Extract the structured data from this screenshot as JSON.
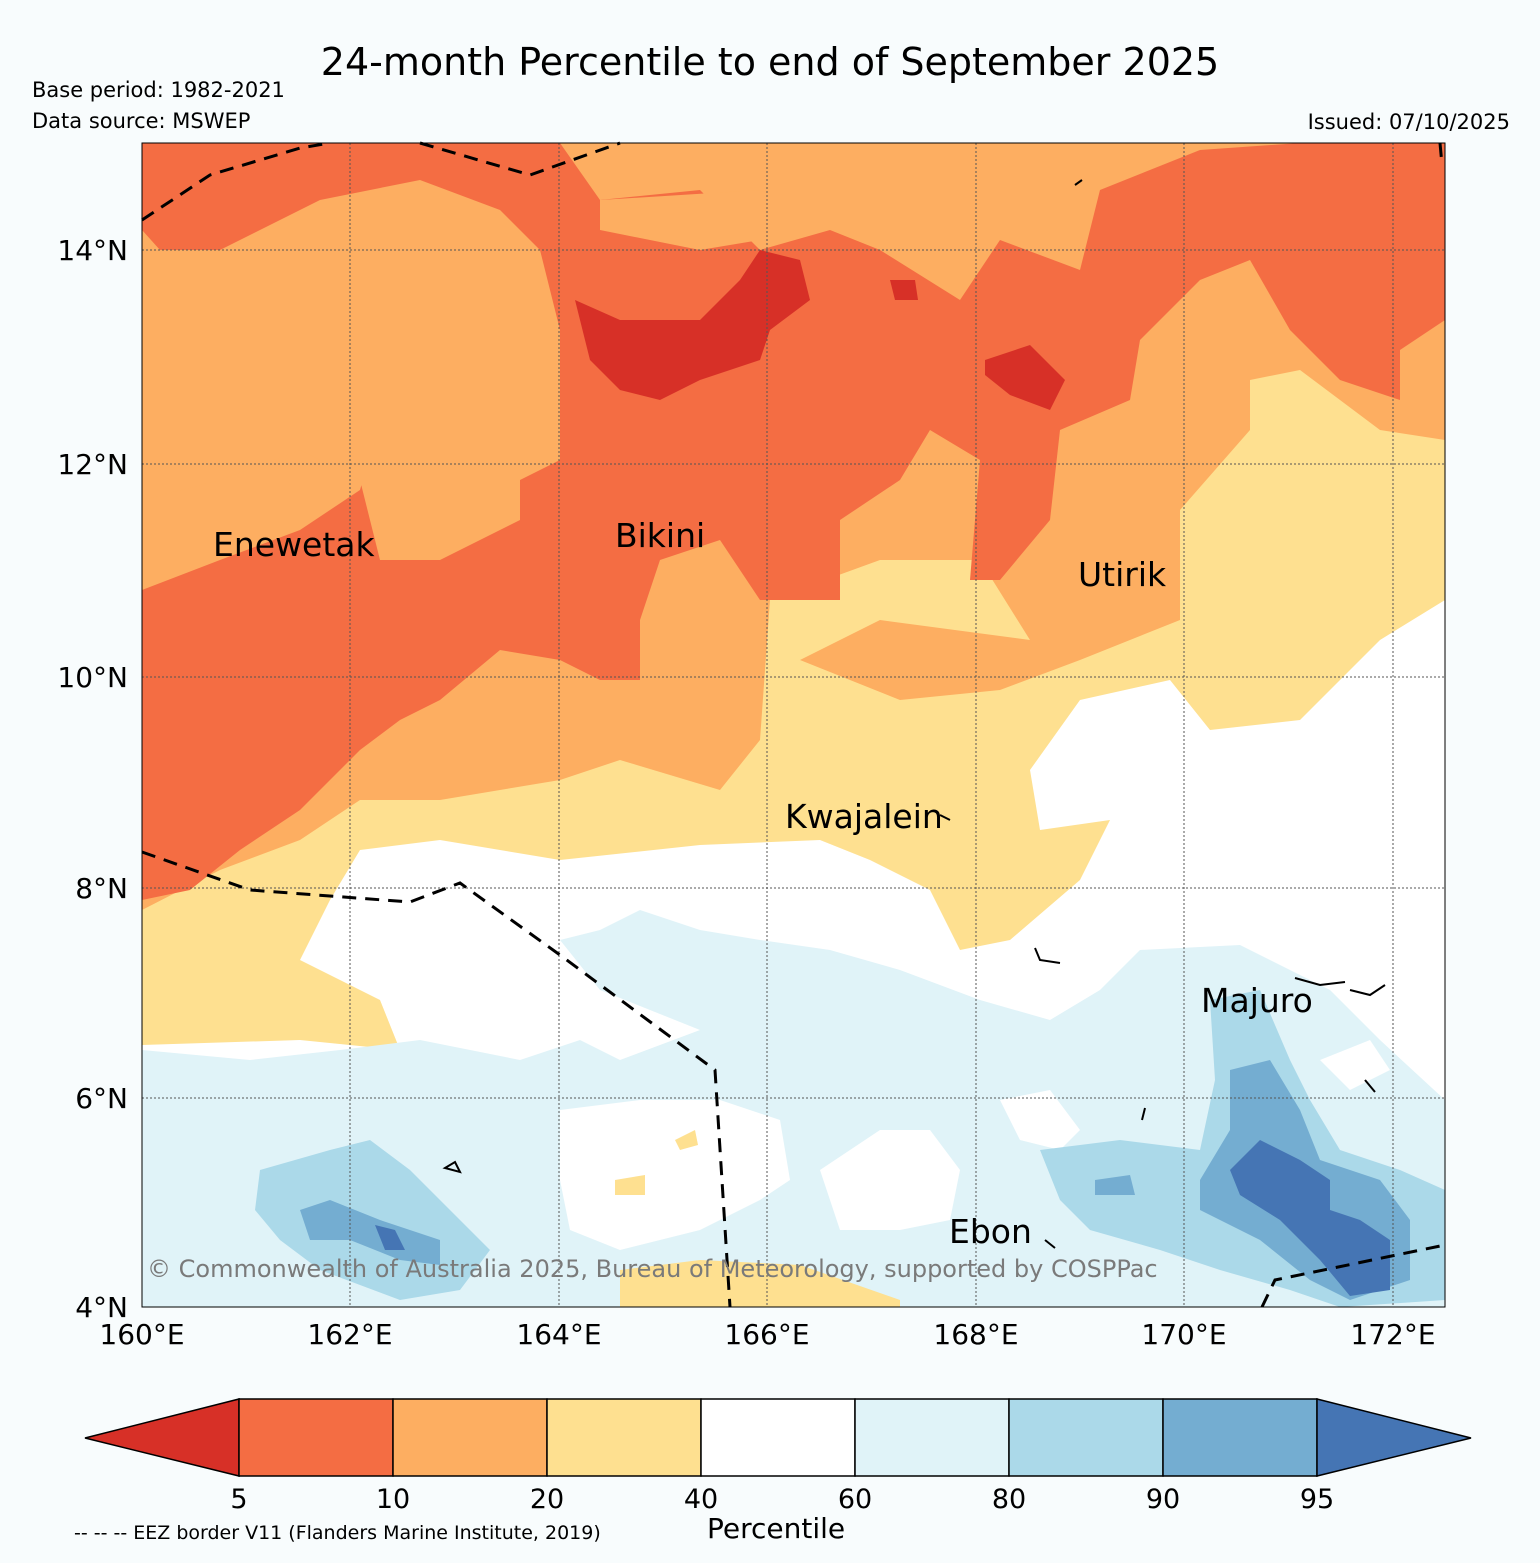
{
  "header": {
    "title": "24-month Percentile to end of September 2025",
    "base_period": "Base period: 1982-2021",
    "data_source": "Data source: MSWEP",
    "issued": "Issued: 07/10/2025"
  },
  "map": {
    "lon_range": [
      160,
      172.5
    ],
    "lat_range": [
      4,
      15
    ],
    "lon_ticks": [
      "160°E",
      "162°E",
      "164°E",
      "166°E",
      "168°E",
      "170°E",
      "172°E"
    ],
    "lat_ticks": [
      "4°N",
      "6°N",
      "8°N",
      "10°N",
      "12°N",
      "14°N"
    ],
    "places": [
      {
        "name": "Enewetak",
        "lon": 161.3,
        "lat": 11.3
      },
      {
        "name": "Bikini",
        "lon": 165.5,
        "lat": 11.4
      },
      {
        "name": "Utirik",
        "lon": 169.8,
        "lat": 11.0
      },
      {
        "name": "Kwajalein",
        "lon": 167.3,
        "lat": 8.7
      },
      {
        "name": "Majuro",
        "lon": 171.1,
        "lat": 7.1
      },
      {
        "name": "Ebon",
        "lon": 168.5,
        "lat": 4.75
      }
    ],
    "copyright": "© Commonwealth of Australia 2025, Bureau of Meteorology, supported by COSPPac"
  },
  "colors": {
    "lt5": "#d73027",
    "p5_10": "#f46d43",
    "p10_20": "#fdae61",
    "p20_40": "#fee090",
    "p40_60": "#ffffff",
    "p60_80": "#e0f3f8",
    "p80_90": "#abd9e9",
    "p90_95": "#74add1",
    "gt95": "#4575b4"
  },
  "colorbar": {
    "label": "Percentile",
    "ticks": [
      "5",
      "10",
      "20",
      "40",
      "60",
      "80",
      "90",
      "95"
    ]
  },
  "footer": {
    "eez_note": "-- -- -- EEZ border V11 (Flanders Marine Institute, 2019)"
  }
}
